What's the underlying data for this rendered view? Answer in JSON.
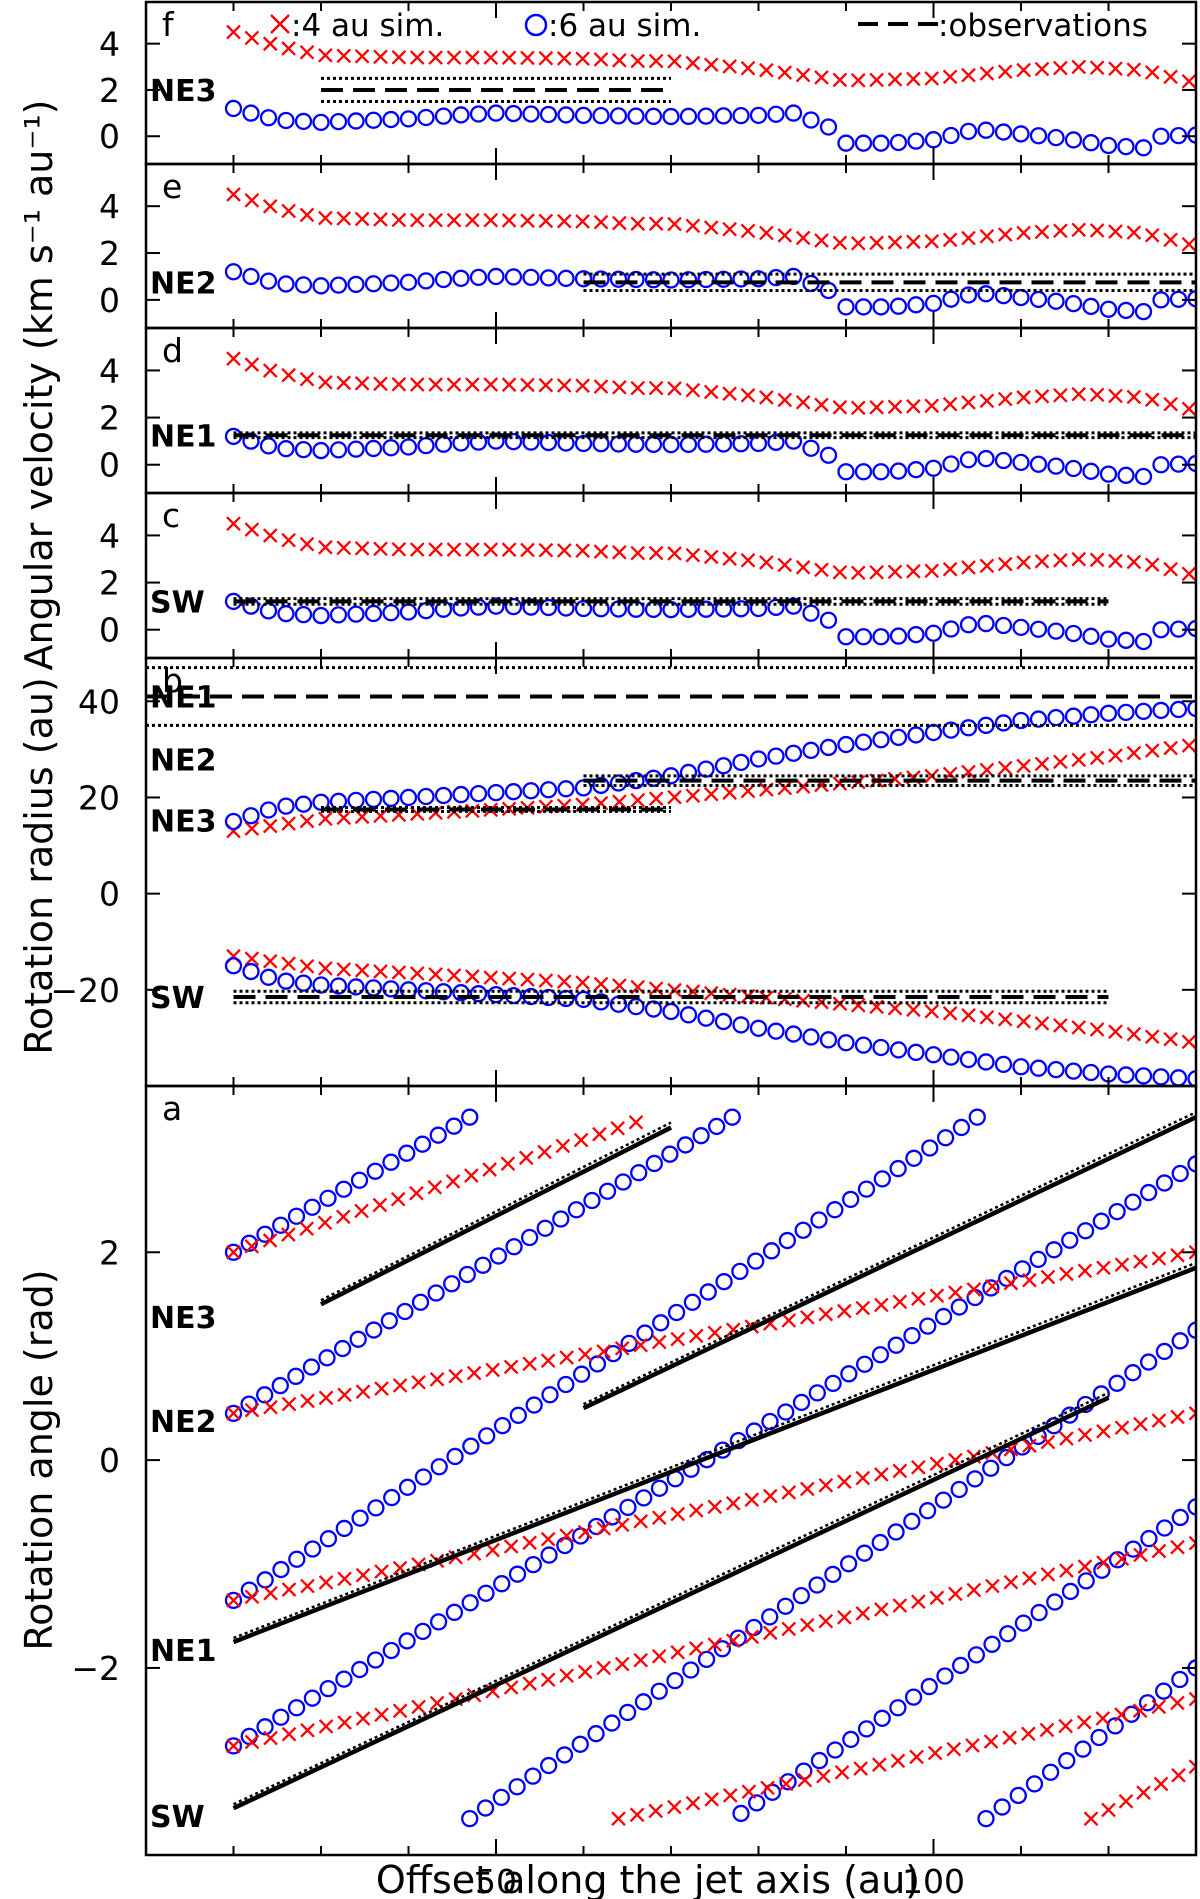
{
  "colors": {
    "sim4": "#ff0000",
    "sim6": "#0000ff",
    "obs": "#000000",
    "axes": "#000000"
  },
  "legend": {
    "sim4_label": ":4 au sim.",
    "sim6_label": ":6 au sim.",
    "obs_label": ":observations"
  },
  "axes_text": {
    "xlabel": "Offset along the jet axis (au)",
    "ylabel_angvel": "Angular velocity (km s⁻¹ au⁻¹)",
    "ylabel_radius": "Rotation radius (au)",
    "ylabel_angle": "Rotation angle (rad)"
  },
  "chart_data": [
    {
      "panel": "f",
      "type": "scatter",
      "region": "NE3",
      "xlim": [
        10,
        130
      ],
      "ylim": [
        -1.2,
        5.8
      ],
      "yticks": [
        0,
        2,
        4
      ],
      "ytick_labels": [
        "0",
        "2",
        "4"
      ],
      "obs": {
        "x": [
          30,
          70
        ],
        "y": 2.0,
        "err": 0.5
      }
    },
    {
      "panel": "e",
      "type": "scatter",
      "region": "NE2",
      "xlim": [
        10,
        130
      ],
      "ylim": [
        -1.2,
        5.8
      ],
      "yticks": [
        0,
        2,
        4
      ],
      "ytick_labels": [
        "0",
        "2",
        "4"
      ],
      "obs": {
        "x": [
          60,
          130
        ],
        "y": 0.75,
        "err": 0.35
      }
    },
    {
      "panel": "d",
      "type": "scatter",
      "region": "NE1",
      "xlim": [
        10,
        130
      ],
      "ylim": [
        -1.2,
        5.8
      ],
      "yticks": [
        0,
        2,
        4
      ],
      "ytick_labels": [
        "0",
        "2",
        "4"
      ],
      "obs": {
        "x": [
          20,
          130
        ],
        "y": 1.25,
        "err": 0.1
      }
    },
    {
      "panel": "c",
      "type": "scatter",
      "region": "SW",
      "xlim": [
        10,
        130
      ],
      "ylim": [
        -1.2,
        5.8
      ],
      "yticks": [
        0,
        2,
        4
      ],
      "ytick_labels": [
        "0",
        "2",
        "4"
      ],
      "obs": {
        "x": [
          20,
          120
        ],
        "y": 1.2,
        "err": 0.12
      }
    },
    {
      "panel": "b",
      "type": "scatter",
      "xlim": [
        10,
        130
      ],
      "ylim": [
        -40,
        49
      ],
      "yticks": [
        -20,
        0,
        20,
        40
      ],
      "ytick_labels": [
        "−20",
        "0",
        "20",
        "40"
      ],
      "obs": [
        {
          "region": "NE1",
          "x": [
            10,
            130
          ],
          "y": 41,
          "err": 6
        },
        {
          "region": "NE2",
          "x": [
            60,
            130
          ],
          "y": 23.5,
          "err": 1.0
        },
        {
          "region": "NE3",
          "x": [
            30,
            70
          ],
          "y": 17.5,
          "err": 0.4
        },
        {
          "region": "SW",
          "x": [
            20,
            120
          ],
          "y": -21.5,
          "err": 1.2
        }
      ]
    },
    {
      "panel": "a",
      "type": "scatter",
      "xlim": [
        10,
        130
      ],
      "ylim": [
        -3.8,
        3.6
      ],
      "yticks": [
        -2,
        0,
        2
      ],
      "ytick_labels": [
        "−2",
        "0",
        "2"
      ],
      "xticks": [
        50,
        100
      ],
      "xtick_labels": [
        "50",
        "100"
      ],
      "region_offsets": [
        {
          "region": "NE3",
          "angle": 1.5
        },
        {
          "region": "NE2",
          "angle": 0.5
        },
        {
          "region": "NE1",
          "angle": -1.7
        },
        {
          "region": "SW",
          "angle": -3.3
        }
      ],
      "obs_lines": [
        {
          "region": "NE3",
          "x": [
            30,
            70
          ],
          "y": [
            1.5,
            3.2
          ]
        },
        {
          "region": "NE2",
          "x": [
            60,
            130
          ],
          "y": [
            0.5,
            3.3
          ]
        },
        {
          "region": "NE1",
          "x": [
            20,
            130
          ],
          "y": [
            -1.75,
            1.85
          ]
        },
        {
          "region": "SW",
          "x": [
            20,
            120
          ],
          "y": [
            -3.35,
            0.6
          ]
        }
      ],
      "series_6au_lines": [
        {
          "x": [
            20,
            47
          ],
          "y": [
            2.0,
            3.3
          ]
        },
        {
          "x": [
            20,
            77
          ],
          "y": [
            0.45,
            3.3
          ]
        },
        {
          "x": [
            20,
            105
          ],
          "y": [
            -1.35,
            3.3
          ]
        },
        {
          "x": [
            20,
            130
          ],
          "y": [
            -2.75,
            2.85
          ]
        },
        {
          "x": [
            47,
            130
          ],
          "y": [
            -3.45,
            1.25
          ]
        },
        {
          "x": [
            78,
            130
          ],
          "y": [
            -3.4,
            -0.45
          ]
        },
        {
          "x": [
            106,
            130
          ],
          "y": [
            -3.45,
            -2.0
          ]
        }
      ],
      "series_4au_lines": [
        {
          "x": [
            20,
            66
          ],
          "y": [
            2.0,
            3.25
          ]
        },
        {
          "x": [
            20,
            130
          ],
          "y": [
            0.45,
            2.0
          ]
        },
        {
          "x": [
            20,
            130
          ],
          "y": [
            -1.35,
            0.45
          ]
        },
        {
          "x": [
            20,
            130
          ],
          "y": [
            -2.75,
            -0.8
          ]
        },
        {
          "x": [
            64,
            130
          ],
          "y": [
            -3.45,
            -2.3
          ]
        },
        {
          "x": [
            118,
            130
          ],
          "y": [
            -3.45,
            -2.95
          ]
        }
      ]
    }
  ],
  "sim_curves": {
    "angvel_4au": {
      "x": [
        20,
        25,
        30,
        40,
        50,
        60,
        66,
        70,
        80,
        90,
        100,
        110,
        117,
        124,
        130
      ],
      "y": [
        4.5,
        3.9,
        3.5,
        3.4,
        3.4,
        3.35,
        3.25,
        3.25,
        2.9,
        2.4,
        2.5,
        2.85,
        3.0,
        2.85,
        2.3
      ]
    },
    "angvel_6au": {
      "x": [
        20,
        25,
        30,
        40,
        45,
        50,
        55,
        60,
        70,
        80,
        84,
        88,
        90,
        95,
        100,
        105,
        110,
        115,
        120,
        124,
        126,
        130
      ],
      "y": [
        1.2,
        0.7,
        0.6,
        0.75,
        0.9,
        1.0,
        0.95,
        0.9,
        0.85,
        0.9,
        1.0,
        0.4,
        -0.3,
        -0.3,
        -0.15,
        0.3,
        0.1,
        -0.1,
        -0.4,
        -0.5,
        0.0,
        0.05
      ]
    },
    "radius_4au": {
      "x": [
        20,
        30,
        40,
        50,
        60,
        70,
        80,
        90,
        100,
        110,
        120,
        130
      ],
      "y": [
        13,
        15.5,
        16.5,
        17.5,
        18.5,
        20,
        21.5,
        23,
        24.5,
        26.5,
        28.5,
        31
      ]
    },
    "radius_6au": {
      "x": [
        20,
        25,
        30,
        40,
        50,
        60,
        70,
        80,
        90,
        100,
        110,
        120,
        130
      ],
      "y": [
        15,
        18,
        19,
        20,
        21,
        22,
        24.5,
        28,
        31,
        33.5,
        36,
        37.5,
        38.5
      ]
    }
  }
}
